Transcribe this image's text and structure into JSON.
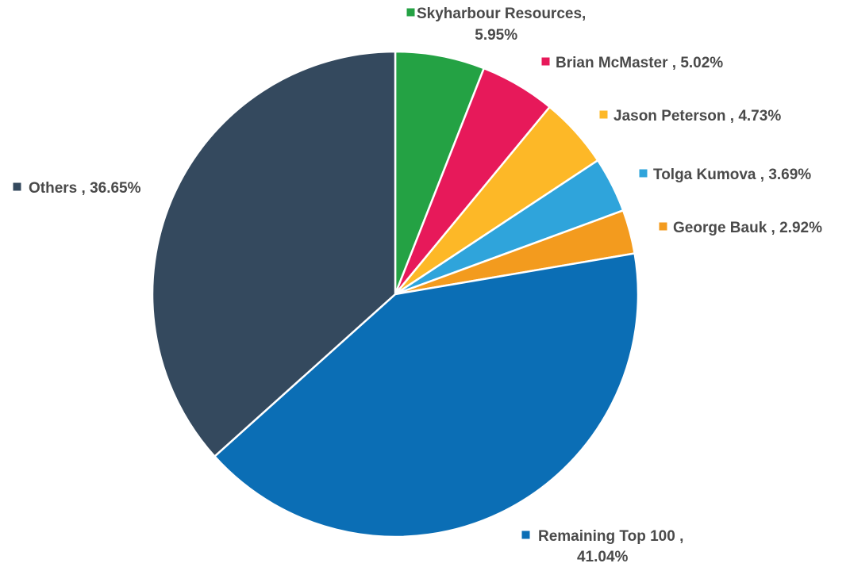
{
  "chart_data": {
    "type": "pie",
    "title": "",
    "start_angle_deg": 0,
    "direction": "clockwise",
    "slices": [
      {
        "name": "Skyharbour Resources,",
        "value": 5.95,
        "label": "5.95%",
        "color": "#24A244"
      },
      {
        "name": "Brian McMaster ,",
        "value": 5.02,
        "label": "5.02%",
        "color": "#E7195A"
      },
      {
        "name": "Jason Peterson ,",
        "value": 4.73,
        "label": "4.73%",
        "color": "#FDB827"
      },
      {
        "name": "Tolga Kumova ,",
        "value": 3.69,
        "label": "3.69%",
        "color": "#2FA4DB"
      },
      {
        "name": "George Bauk ,",
        "value": 2.92,
        "label": "2.92%",
        "color": "#F39B1E"
      },
      {
        "name": "Remaining Top 100 ,",
        "value": 41.04,
        "label": "41.04%",
        "color": "#0B6EB5"
      },
      {
        "name": "Others ,",
        "value": 36.65,
        "label": "36.65%",
        "color": "#34495E"
      }
    ],
    "legend_placement": "labels outside slices"
  }
}
